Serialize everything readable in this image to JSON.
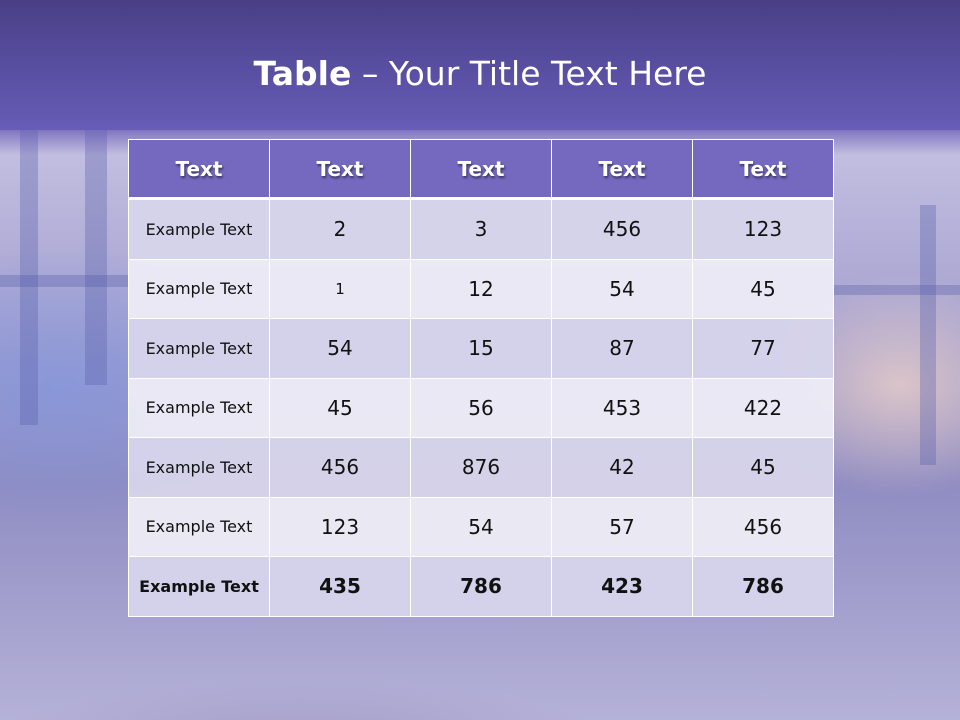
{
  "slide": {
    "title_bold": "Table",
    "title_rest": " – Your Title Text Here"
  },
  "table": {
    "headers": [
      "Text",
      "Text",
      "Text",
      "Text",
      "Text"
    ],
    "rows": [
      [
        "Example Text",
        "2",
        "3",
        "456",
        "123"
      ],
      [
        "Example Text",
        "1",
        "12",
        "54",
        "45"
      ],
      [
        "Example Text",
        "54",
        "15",
        "87",
        "77"
      ],
      [
        "Example Text",
        "45",
        "56",
        "453",
        "422"
      ],
      [
        "Example Text",
        "456",
        "876",
        "42",
        "45"
      ],
      [
        "Example Text",
        "123",
        "54",
        "57",
        "456"
      ],
      [
        "Example Text",
        "435",
        "786",
        "423",
        "786"
      ]
    ]
  },
  "colors": {
    "header_band": "#574ea0",
    "table_header": "#7468bf",
    "row_dark": "#d6d4ea",
    "row_light": "#ebeaf5"
  }
}
